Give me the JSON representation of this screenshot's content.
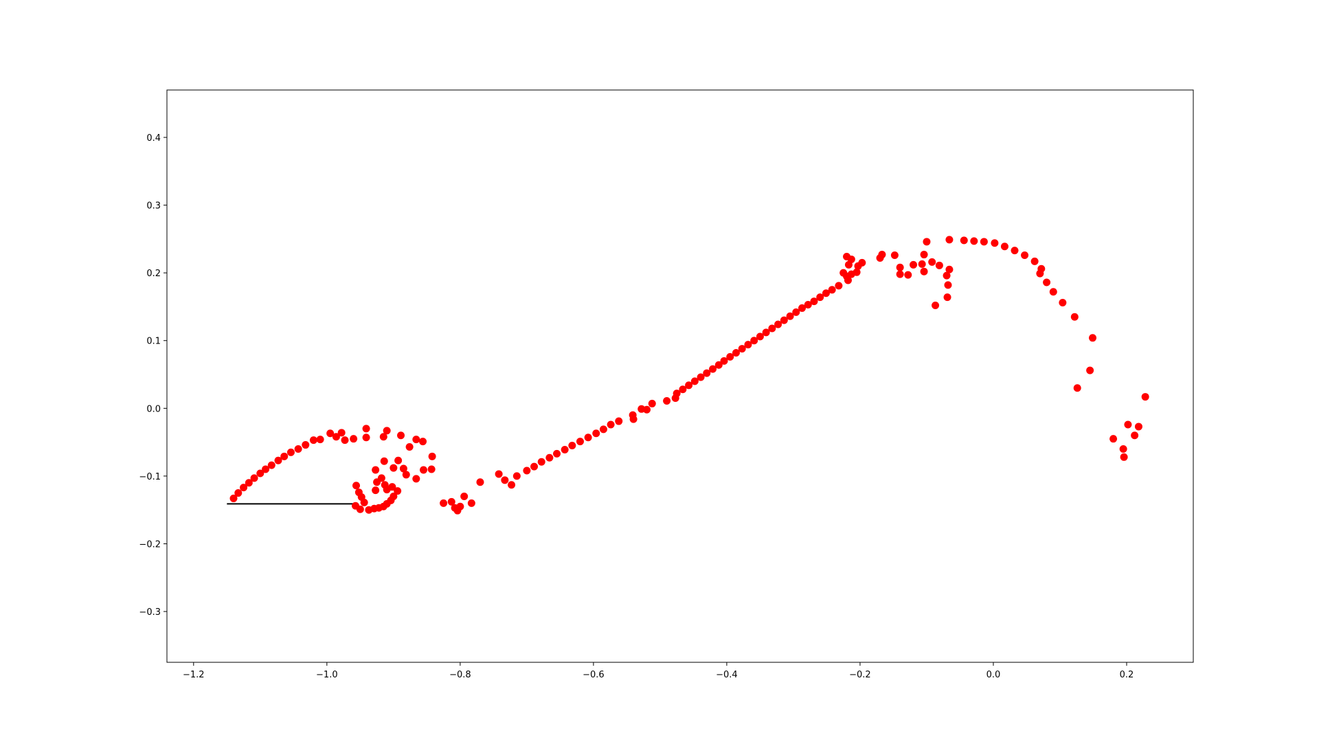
{
  "chart_data": {
    "type": "scatter",
    "title": "",
    "xlabel": "",
    "ylabel": "",
    "xlim": [
      -1.24,
      0.3
    ],
    "ylim": [
      -0.375,
      0.47
    ],
    "grid": false,
    "legend": "none",
    "x_ticks": [
      -1.2,
      -1.0,
      -0.8,
      -0.6,
      -0.4,
      -0.2,
      0.0,
      0.2
    ],
    "x_tick_labels": [
      "−1.2",
      "−1.0",
      "−0.8",
      "−0.6",
      "−0.4",
      "−0.2",
      "0.0",
      "0.2"
    ],
    "y_ticks": [
      -0.3,
      -0.2,
      -0.1,
      0.0,
      0.1,
      0.2,
      0.3,
      0.4
    ],
    "y_tick_labels": [
      "−0.3",
      "−0.2",
      "−0.1",
      "0.0",
      "0.1",
      "0.2",
      "0.3",
      "0.4"
    ],
    "colors": {
      "points": "#ff0000",
      "line": "#000000",
      "axes": "#000000"
    },
    "line": {
      "x": [
        -1.15,
        -0.96
      ],
      "y": [
        -0.141,
        -0.141
      ]
    },
    "series": [
      {
        "points": [
          [
            -1.14,
            -0.133
          ],
          [
            -1.133,
            -0.125
          ],
          [
            -1.125,
            -0.117
          ],
          [
            -1.117,
            -0.11
          ],
          [
            -1.109,
            -0.103
          ],
          [
            -1.1,
            -0.096
          ],
          [
            -1.092,
            -0.09
          ],
          [
            -1.083,
            -0.084
          ],
          [
            -1.073,
            -0.077
          ],
          [
            -1.064,
            -0.071
          ],
          [
            -1.054,
            -0.065
          ],
          [
            -1.043,
            -0.06
          ],
          [
            -1.032,
            -0.054
          ],
          [
            -1.02,
            -0.047
          ],
          [
            -1.01,
            -0.046
          ],
          [
            -0.995,
            -0.037
          ],
          [
            -0.986,
            -0.042
          ],
          [
            -0.978,
            -0.036
          ],
          [
            -0.973,
            -0.047
          ],
          [
            -0.96,
            -0.045
          ],
          [
            -0.941,
            -0.03
          ],
          [
            -0.941,
            -0.043
          ],
          [
            -0.915,
            -0.042
          ],
          [
            -0.91,
            -0.033
          ],
          [
            -0.889,
            -0.04
          ],
          [
            -0.876,
            -0.057
          ],
          [
            -0.866,
            -0.046
          ],
          [
            -0.856,
            -0.049
          ],
          [
            -0.842,
            -0.071
          ],
          [
            -0.843,
            -0.09
          ],
          [
            -0.855,
            -0.091
          ],
          [
            -0.866,
            -0.104
          ],
          [
            -0.881,
            -0.098
          ],
          [
            -0.885,
            -0.089
          ],
          [
            -0.893,
            -0.077
          ],
          [
            -0.9,
            -0.088
          ],
          [
            -0.914,
            -0.078
          ],
          [
            -0.927,
            -0.091
          ],
          [
            -0.918,
            -0.103
          ],
          [
            -0.925,
            -0.109
          ],
          [
            -0.913,
            -0.113
          ],
          [
            -0.902,
            -0.116
          ],
          [
            -0.894,
            -0.122
          ],
          [
            -0.91,
            -0.12
          ],
          [
            -0.927,
            -0.121
          ],
          [
            -0.9,
            -0.13
          ],
          [
            -0.904,
            -0.136
          ],
          [
            -0.91,
            -0.141
          ],
          [
            -0.915,
            -0.145
          ],
          [
            -0.922,
            -0.147
          ],
          [
            -0.929,
            -0.148
          ],
          [
            -0.937,
            -0.15
          ],
          [
            -0.95,
            -0.149
          ],
          [
            -0.957,
            -0.144
          ],
          [
            -0.944,
            -0.139
          ],
          [
            -0.948,
            -0.131
          ],
          [
            -0.952,
            -0.124
          ],
          [
            -0.956,
            -0.114
          ],
          [
            -0.825,
            -0.14
          ],
          [
            -0.813,
            -0.138
          ],
          [
            -0.808,
            -0.147
          ],
          [
            -0.804,
            -0.151
          ],
          [
            -0.8,
            -0.145
          ],
          [
            -0.794,
            -0.13
          ],
          [
            -0.783,
            -0.14
          ],
          [
            -0.77,
            -0.109
          ],
          [
            -0.742,
            -0.097
          ],
          [
            -0.733,
            -0.106
          ],
          [
            -0.723,
            -0.113
          ],
          [
            -0.715,
            -0.1
          ],
          [
            -0.7,
            -0.092
          ],
          [
            -0.689,
            -0.086
          ],
          [
            -0.678,
            -0.079
          ],
          [
            -0.666,
            -0.073
          ],
          [
            -0.655,
            -0.067
          ],
          [
            -0.643,
            -0.061
          ],
          [
            -0.632,
            -0.055
          ],
          [
            -0.62,
            -0.049
          ],
          [
            -0.608,
            -0.043
          ],
          [
            -0.596,
            -0.037
          ],
          [
            -0.585,
            -0.031
          ],
          [
            -0.574,
            -0.024
          ],
          [
            -0.562,
            -0.019
          ],
          [
            -0.541,
            -0.01
          ],
          [
            -0.54,
            -0.016
          ],
          [
            -0.528,
            -0.001
          ],
          [
            -0.52,
            -0.002
          ],
          [
            -0.512,
            0.007
          ],
          [
            -0.49,
            0.011
          ],
          [
            -0.477,
            0.015
          ],
          [
            -0.475,
            0.022
          ],
          [
            -0.466,
            0.028
          ],
          [
            -0.457,
            0.034
          ],
          [
            -0.448,
            0.04
          ],
          [
            -0.439,
            0.046
          ],
          [
            -0.43,
            0.052
          ],
          [
            -0.421,
            0.058
          ],
          [
            -0.412,
            0.064
          ],
          [
            -0.404,
            0.07
          ],
          [
            -0.395,
            0.076
          ],
          [
            -0.386,
            0.082
          ],
          [
            -0.377,
            0.088
          ],
          [
            -0.368,
            0.094
          ],
          [
            -0.359,
            0.1
          ],
          [
            -0.35,
            0.106
          ],
          [
            -0.341,
            0.112
          ],
          [
            -0.332,
            0.118
          ],
          [
            -0.323,
            0.124
          ],
          [
            -0.314,
            0.13
          ],
          [
            -0.305,
            0.136
          ],
          [
            -0.296,
            0.142
          ],
          [
            -0.287,
            0.148
          ],
          [
            -0.278,
            0.153
          ],
          [
            -0.269,
            0.158
          ],
          [
            -0.26,
            0.164
          ],
          [
            -0.251,
            0.17
          ],
          [
            -0.242,
            0.175
          ],
          [
            -0.232,
            0.181
          ],
          [
            -0.225,
            0.2
          ],
          [
            -0.22,
            0.195
          ],
          [
            -0.218,
            0.189
          ],
          [
            -0.22,
            0.224
          ],
          [
            -0.217,
            0.212
          ],
          [
            -0.213,
            0.22
          ],
          [
            -0.213,
            0.198
          ],
          [
            -0.205,
            0.201
          ],
          [
            -0.203,
            0.21
          ],
          [
            -0.197,
            0.215
          ],
          [
            -0.17,
            0.222
          ],
          [
            -0.167,
            0.227
          ],
          [
            -0.148,
            0.226
          ],
          [
            -0.14,
            0.198
          ],
          [
            -0.14,
            0.208
          ],
          [
            -0.128,
            0.197
          ],
          [
            -0.12,
            0.212
          ],
          [
            -0.107,
            0.213
          ],
          [
            -0.104,
            0.227
          ],
          [
            -0.104,
            0.202
          ],
          [
            -0.1,
            0.246
          ],
          [
            -0.092,
            0.216
          ],
          [
            -0.087,
            0.152
          ],
          [
            -0.081,
            0.211
          ],
          [
            -0.07,
            0.196
          ],
          [
            -0.069,
            0.164
          ],
          [
            -0.068,
            0.182
          ],
          [
            -0.066,
            0.205
          ],
          [
            -0.066,
            0.249
          ],
          [
            -0.044,
            0.248
          ],
          [
            -0.029,
            0.247
          ],
          [
            -0.014,
            0.246
          ],
          [
            0.002,
            0.244
          ],
          [
            0.017,
            0.239
          ],
          [
            0.032,
            0.233
          ],
          [
            0.047,
            0.226
          ],
          [
            0.062,
            0.217
          ],
          [
            0.072,
            0.206
          ],
          [
            0.07,
            0.199
          ],
          [
            0.08,
            0.186
          ],
          [
            0.09,
            0.172
          ],
          [
            0.104,
            0.156
          ],
          [
            0.122,
            0.135
          ],
          [
            0.126,
            0.03
          ],
          [
            0.145,
            0.056
          ],
          [
            0.149,
            0.104
          ],
          [
            0.18,
            -0.045
          ],
          [
            0.195,
            -0.06
          ],
          [
            0.196,
            -0.072
          ],
          [
            0.202,
            -0.024
          ],
          [
            0.212,
            -0.04
          ],
          [
            0.218,
            -0.027
          ],
          [
            0.228,
            0.017
          ]
        ]
      }
    ]
  }
}
